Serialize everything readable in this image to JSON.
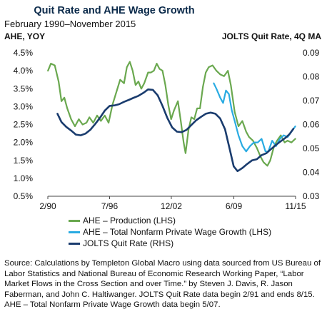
{
  "chart_data": {
    "type": "line",
    "title": "Quit Rate and AHE Wage Growth",
    "subtitle": "February 1990–November 2015",
    "ylabel_left": "AHE, YOY",
    "ylabel_right": "JOLTS Quit Rate, 4Q MA",
    "xlim": [
      1990.083,
      2015.833
    ],
    "ylim_left": [
      0.5,
      4.5
    ],
    "ylim_right": [
      0.03,
      0.09
    ],
    "x_ticks": [
      {
        "label": "2/90",
        "value": 1990.083
      },
      {
        "label": "7/96",
        "value": 1996.5
      },
      {
        "label": "12/02",
        "value": 2002.917
      },
      {
        "label": "6/09",
        "value": 2009.417
      },
      {
        "label": "11/15",
        "value": 2015.833
      }
    ],
    "y_ticks_left": [
      "0.5%",
      "1.0%",
      "1.5%",
      "2.0%",
      "2.5%",
      "3.0%",
      "3.5%",
      "4.0%",
      "4.5%"
    ],
    "y_ticks_left_values": [
      0.5,
      1.0,
      1.5,
      2.0,
      2.5,
      3.0,
      3.5,
      4.0,
      4.5
    ],
    "y_ticks_right": [
      "0.03",
      "0.04",
      "0.05",
      "0.06",
      "0.07",
      "0.08",
      "0.09"
    ],
    "y_ticks_right_values": [
      0.03,
      0.04,
      0.05,
      0.06,
      0.07,
      0.08,
      0.09
    ],
    "grid": false,
    "legend_position": "bottom",
    "series": [
      {
        "name": "AHE – Production (LHS)",
        "axis": "left",
        "color": "#6aa84f",
        "points": [
          [
            1990.1,
            4.0
          ],
          [
            1990.4,
            4.2
          ],
          [
            1990.8,
            4.15
          ],
          [
            1991.2,
            3.7
          ],
          [
            1991.5,
            3.15
          ],
          [
            1991.8,
            3.25
          ],
          [
            1992.1,
            2.95
          ],
          [
            1992.5,
            2.65
          ],
          [
            1992.9,
            2.45
          ],
          [
            1993.3,
            2.65
          ],
          [
            1993.7,
            2.5
          ],
          [
            1994.1,
            2.55
          ],
          [
            1994.4,
            2.7
          ],
          [
            1994.8,
            2.55
          ],
          [
            1995.2,
            2.75
          ],
          [
            1995.6,
            2.6
          ],
          [
            1996.0,
            2.75
          ],
          [
            1996.4,
            2.55
          ],
          [
            1996.8,
            3.05
          ],
          [
            1997.2,
            3.4
          ],
          [
            1997.6,
            3.75
          ],
          [
            1998.0,
            3.65
          ],
          [
            1998.3,
            4.1
          ],
          [
            1998.6,
            4.25
          ],
          [
            1998.9,
            4.0
          ],
          [
            1999.2,
            3.6
          ],
          [
            1999.5,
            3.7
          ],
          [
            1999.8,
            3.5
          ],
          [
            2000.1,
            3.65
          ],
          [
            2000.5,
            3.95
          ],
          [
            2000.8,
            3.95
          ],
          [
            2001.1,
            4.0
          ],
          [
            2001.4,
            4.2
          ],
          [
            2001.7,
            4.05
          ],
          [
            2002.0,
            4.0
          ],
          [
            2002.3,
            3.6
          ],
          [
            2002.6,
            3.05
          ],
          [
            2002.9,
            2.65
          ],
          [
            2003.2,
            2.9
          ],
          [
            2003.6,
            3.15
          ],
          [
            2003.9,
            2.6
          ],
          [
            2004.2,
            2.0
          ],
          [
            2004.4,
            1.7
          ],
          [
            2004.7,
            2.35
          ],
          [
            2005.0,
            2.7
          ],
          [
            2005.3,
            2.65
          ],
          [
            2005.6,
            2.95
          ],
          [
            2005.9,
            2.95
          ],
          [
            2006.2,
            3.55
          ],
          [
            2006.5,
            3.95
          ],
          [
            2006.8,
            4.1
          ],
          [
            2007.2,
            4.15
          ],
          [
            2007.6,
            4.0
          ],
          [
            2008.0,
            3.9
          ],
          [
            2008.4,
            3.85
          ],
          [
            2008.8,
            4.0
          ],
          [
            2009.1,
            3.6
          ],
          [
            2009.5,
            2.85
          ],
          [
            2009.9,
            2.45
          ],
          [
            2010.3,
            2.6
          ],
          [
            2010.7,
            2.3
          ],
          [
            2011.0,
            2.15
          ],
          [
            2011.4,
            2.05
          ],
          [
            2011.8,
            1.85
          ],
          [
            2012.2,
            1.6
          ],
          [
            2012.5,
            1.45
          ],
          [
            2012.9,
            1.35
          ],
          [
            2013.2,
            1.5
          ],
          [
            2013.6,
            1.9
          ],
          [
            2013.9,
            2.05
          ],
          [
            2014.3,
            2.2
          ],
          [
            2014.7,
            2.0
          ],
          [
            2015.0,
            2.05
          ],
          [
            2015.4,
            2.0
          ],
          [
            2015.8,
            2.1
          ]
        ]
      },
      {
        "name": "AHE – Total Nonfarm Private Wage Growth (LHS)",
        "axis": "left",
        "color": "#29abe2",
        "points": [
          [
            2007.33,
            3.65
          ],
          [
            2007.6,
            3.5
          ],
          [
            2008.0,
            3.25
          ],
          [
            2008.3,
            3.1
          ],
          [
            2008.6,
            3.45
          ],
          [
            2008.9,
            3.35
          ],
          [
            2009.2,
            2.9
          ],
          [
            2009.5,
            2.6
          ],
          [
            2009.9,
            2.2
          ],
          [
            2010.3,
            1.9
          ],
          [
            2010.7,
            1.75
          ],
          [
            2011.1,
            1.9
          ],
          [
            2011.5,
            2.0
          ],
          [
            2011.9,
            2.0
          ],
          [
            2012.3,
            2.1
          ],
          [
            2012.7,
            1.75
          ],
          [
            2013.0,
            1.75
          ],
          [
            2013.4,
            2.05
          ],
          [
            2013.8,
            1.9
          ],
          [
            2014.2,
            2.1
          ],
          [
            2014.6,
            2.2
          ],
          [
            2015.0,
            2.15
          ],
          [
            2015.4,
            2.3
          ],
          [
            2015.8,
            2.45
          ]
        ]
      },
      {
        "name": "JOLTS Quit Rate (RHS)",
        "axis": "right",
        "color": "#1a3c6e",
        "points": [
          [
            1991.083,
            0.0645
          ],
          [
            1991.5,
            0.061
          ],
          [
            1992.0,
            0.059
          ],
          [
            1992.5,
            0.0575
          ],
          [
            1993.0,
            0.0558
          ],
          [
            1993.5,
            0.0555
          ],
          [
            1994.0,
            0.0562
          ],
          [
            1994.5,
            0.0578
          ],
          [
            1995.0,
            0.0602
          ],
          [
            1995.5,
            0.0628
          ],
          [
            1996.0,
            0.0658
          ],
          [
            1996.5,
            0.0678
          ],
          [
            1997.0,
            0.068
          ],
          [
            1997.5,
            0.0685
          ],
          [
            1998.0,
            0.0695
          ],
          [
            1998.5,
            0.0703
          ],
          [
            1999.0,
            0.0712
          ],
          [
            1999.5,
            0.072
          ],
          [
            2000.0,
            0.0732
          ],
          [
            2000.5,
            0.0747
          ],
          [
            2001.0,
            0.0745
          ],
          [
            2001.5,
            0.0722
          ],
          [
            2002.0,
            0.0678
          ],
          [
            2002.5,
            0.0628
          ],
          [
            2003.0,
            0.0588
          ],
          [
            2003.5,
            0.057
          ],
          [
            2004.0,
            0.0568
          ],
          [
            2004.5,
            0.0578
          ],
          [
            2005.0,
            0.0598
          ],
          [
            2005.5,
            0.0618
          ],
          [
            2006.0,
            0.0632
          ],
          [
            2006.5,
            0.0645
          ],
          [
            2007.0,
            0.065
          ],
          [
            2007.5,
            0.0645
          ],
          [
            2008.0,
            0.0625
          ],
          [
            2008.5,
            0.058
          ],
          [
            2009.0,
            0.0495
          ],
          [
            2009.4,
            0.0425
          ],
          [
            2009.8,
            0.0405
          ],
          [
            2010.3,
            0.0418
          ],
          [
            2010.8,
            0.0435
          ],
          [
            2011.3,
            0.045
          ],
          [
            2011.8,
            0.0455
          ],
          [
            2012.3,
            0.0472
          ],
          [
            2012.8,
            0.048
          ],
          [
            2013.3,
            0.0498
          ],
          [
            2013.8,
            0.0515
          ],
          [
            2014.3,
            0.053
          ],
          [
            2014.8,
            0.0545
          ],
          [
            2015.2,
            0.056
          ],
          [
            2015.6,
            0.0582
          ]
        ]
      }
    ]
  },
  "source_note": "Source: Calculations by Templeton Global Macro using data sourced from US Bureau of Labor Statistics and National Bureau of Economic Research Working Paper, “Labor Market Flows in the Cross Section and over Time.” by Steven J. Davis, R. Jason Faberman, and John C. Haltiwanger. JOLTS Quit Rate data begin 2/91 and ends 8/15. AHE – Total Nonfarm Private Wage Growth data begin 5/07."
}
